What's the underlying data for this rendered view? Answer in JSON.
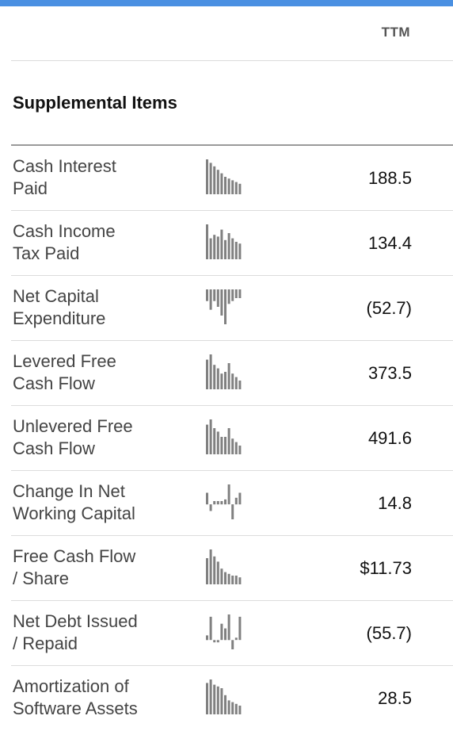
{
  "header": {
    "column_label": "TTM"
  },
  "section": {
    "title": "Supplemental Items"
  },
  "rows": [
    {
      "label_line1": "Cash Interest",
      "label_line2": "Paid",
      "value": "188.5",
      "spark": [
        1.0,
        0.9,
        0.8,
        0.7,
        0.6,
        0.5,
        0.45,
        0.4,
        0.35,
        0.3
      ]
    },
    {
      "label_line1": "Cash Income",
      "label_line2": "Tax Paid",
      "value": "134.4",
      "spark": [
        1.0,
        0.6,
        0.7,
        0.65,
        0.85,
        0.55,
        0.75,
        0.6,
        0.5,
        0.45
      ]
    },
    {
      "label_line1": "Net Capital",
      "label_line2": "Expenditure",
      "value": "(52.7)",
      "spark": [
        -0.2,
        -0.35,
        -0.2,
        -0.3,
        -0.45,
        -0.6,
        -0.25,
        -0.2,
        -0.15,
        -0.15
      ]
    },
    {
      "label_line1": "Levered Free",
      "label_line2": "Cash Flow",
      "value": "373.5",
      "spark": [
        0.85,
        1.0,
        0.7,
        0.6,
        0.45,
        0.5,
        0.75,
        0.45,
        0.35,
        0.25
      ]
    },
    {
      "label_line1": "Unlevered Free",
      "label_line2": "Cash Flow",
      "value": "491.6",
      "spark": [
        0.85,
        1.0,
        0.75,
        0.65,
        0.5,
        0.5,
        0.75,
        0.45,
        0.35,
        0.25
      ]
    },
    {
      "label_line1": "Change In Net",
      "label_line2": "Working Capital",
      "value": "14.8",
      "spark": [
        0.35,
        -0.2,
        0.1,
        0.1,
        0.1,
        0.15,
        0.6,
        -0.45,
        0.2,
        0.35
      ]
    },
    {
      "label_line1": "Free Cash Flow",
      "label_line2": "/ Share",
      "value": "$11.73",
      "spark": [
        0.75,
        1.0,
        0.8,
        0.65,
        0.45,
        0.35,
        0.3,
        0.25,
        0.25,
        0.2
      ]
    },
    {
      "label_line1": "Net Debt Issued",
      "label_line2": "/ Repaid",
      "value": "(55.7)",
      "spark": [
        0.1,
        0.5,
        -0.05,
        -0.05,
        0.35,
        0.25,
        0.55,
        -0.2,
        0.05,
        0.5
      ]
    },
    {
      "label_line1": "Amortization of",
      "label_line2": "Software Assets",
      "value": "28.5",
      "spark": [
        0.9,
        1.0,
        0.85,
        0.8,
        0.75,
        0.55,
        0.4,
        0.35,
        0.3,
        0.25
      ]
    }
  ],
  "colors": {
    "accent": "#4a90e2",
    "bar": "#808080"
  }
}
